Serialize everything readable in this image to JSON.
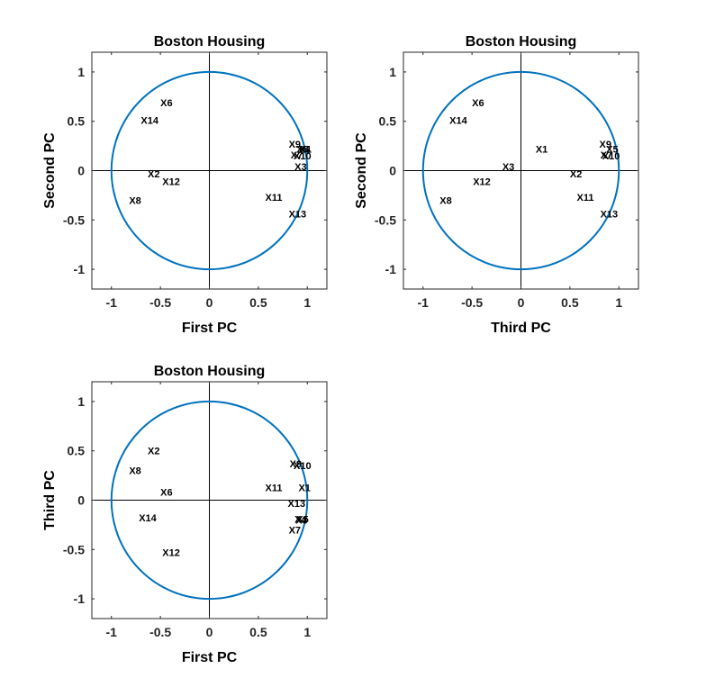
{
  "chart_data": [
    {
      "type": "scatter",
      "title": "Boston Housing",
      "xlabel": "First PC",
      "ylabel": "Second PC",
      "xlim": [
        -1.2,
        1.2
      ],
      "ylim": [
        -1.2,
        1.2
      ],
      "xticks": [
        -1,
        -0.5,
        0,
        0.5,
        1
      ],
      "yticks": [
        -1,
        -0.5,
        0,
        0.5,
        1
      ],
      "unit_circle": true,
      "origin_axes": true,
      "points": [
        {
          "label": "X6",
          "x": -0.5,
          "y": 0.69
        },
        {
          "label": "X14",
          "x": -0.7,
          "y": 0.51
        },
        {
          "label": "X9",
          "x": 0.81,
          "y": 0.27
        },
        {
          "label": "X5",
          "x": 0.89,
          "y": 0.22
        },
        {
          "label": "X4",
          "x": 0.91,
          "y": 0.22
        },
        {
          "label": "X1",
          "x": 0.92,
          "y": 0.22
        },
        {
          "label": "X7",
          "x": 0.83,
          "y": 0.16
        },
        {
          "label": "X10",
          "x": 0.86,
          "y": 0.15
        },
        {
          "label": "X3",
          "x": 0.87,
          "y": 0.04
        },
        {
          "label": "X2",
          "x": -0.63,
          "y": -0.03
        },
        {
          "label": "X12",
          "x": -0.48,
          "y": -0.11
        },
        {
          "label": "X8",
          "x": -0.82,
          "y": -0.3
        },
        {
          "label": "X11",
          "x": 0.57,
          "y": -0.27
        },
        {
          "label": "X13",
          "x": 0.81,
          "y": -0.44
        }
      ]
    },
    {
      "type": "scatter",
      "title": "Boston Housing",
      "xlabel": "Third PC",
      "ylabel": "Second PC",
      "xlim": [
        -1.2,
        1.2
      ],
      "ylim": [
        -1.2,
        1.2
      ],
      "xticks": [
        -1,
        -0.5,
        0,
        0.5,
        1
      ],
      "yticks": [
        -1,
        -0.5,
        0,
        0.5,
        1
      ],
      "unit_circle": true,
      "origin_axes": true,
      "points": [
        {
          "label": "X6",
          "x": -0.5,
          "y": 0.69
        },
        {
          "label": "X14",
          "x": -0.73,
          "y": 0.51
        },
        {
          "label": "X1",
          "x": 0.15,
          "y": 0.22
        },
        {
          "label": "X9",
          "x": 0.8,
          "y": 0.27
        },
        {
          "label": "X5",
          "x": 0.87,
          "y": 0.22
        },
        {
          "label": "X7",
          "x": 0.81,
          "y": 0.16
        },
        {
          "label": "X10",
          "x": 0.83,
          "y": 0.15
        },
        {
          "label": "X3",
          "x": -0.19,
          "y": 0.04
        },
        {
          "label": "X2",
          "x": 0.5,
          "y": -0.03
        },
        {
          "label": "X12",
          "x": -0.49,
          "y": -0.11
        },
        {
          "label": "X8",
          "x": -0.83,
          "y": -0.3
        },
        {
          "label": "X11",
          "x": 0.57,
          "y": -0.27
        },
        {
          "label": "X13",
          "x": 0.81,
          "y": -0.44
        }
      ]
    },
    {
      "type": "scatter",
      "title": "Boston Housing",
      "xlabel": "First PC",
      "ylabel": "Third PC",
      "xlim": [
        -1.2,
        1.2
      ],
      "ylim": [
        -1.2,
        1.2
      ],
      "xticks": [
        -1,
        -0.5,
        0,
        0.5,
        1
      ],
      "yticks": [
        -1,
        -0.5,
        0,
        0.5,
        1
      ],
      "unit_circle": true,
      "origin_axes": true,
      "points": [
        {
          "label": "X2",
          "x": -0.63,
          "y": 0.5
        },
        {
          "label": "X8",
          "x": -0.82,
          "y": 0.3
        },
        {
          "label": "X6",
          "x": -0.5,
          "y": 0.08
        },
        {
          "label": "X14",
          "x": -0.72,
          "y": -0.18
        },
        {
          "label": "X12",
          "x": -0.48,
          "y": -0.53
        },
        {
          "label": "X9",
          "x": 0.82,
          "y": 0.37
        },
        {
          "label": "X10",
          "x": 0.86,
          "y": 0.35
        },
        {
          "label": "X11",
          "x": 0.57,
          "y": 0.13
        },
        {
          "label": "X1",
          "x": 0.91,
          "y": 0.13
        },
        {
          "label": "X13",
          "x": 0.8,
          "y": -0.03
        },
        {
          "label": "X4",
          "x": 0.87,
          "y": -0.19
        },
        {
          "label": "X5",
          "x": 0.89,
          "y": -0.19
        },
        {
          "label": "X3",
          "x": 0.88,
          "y": -0.2
        },
        {
          "label": "X7",
          "x": 0.81,
          "y": -0.3
        }
      ]
    }
  ]
}
